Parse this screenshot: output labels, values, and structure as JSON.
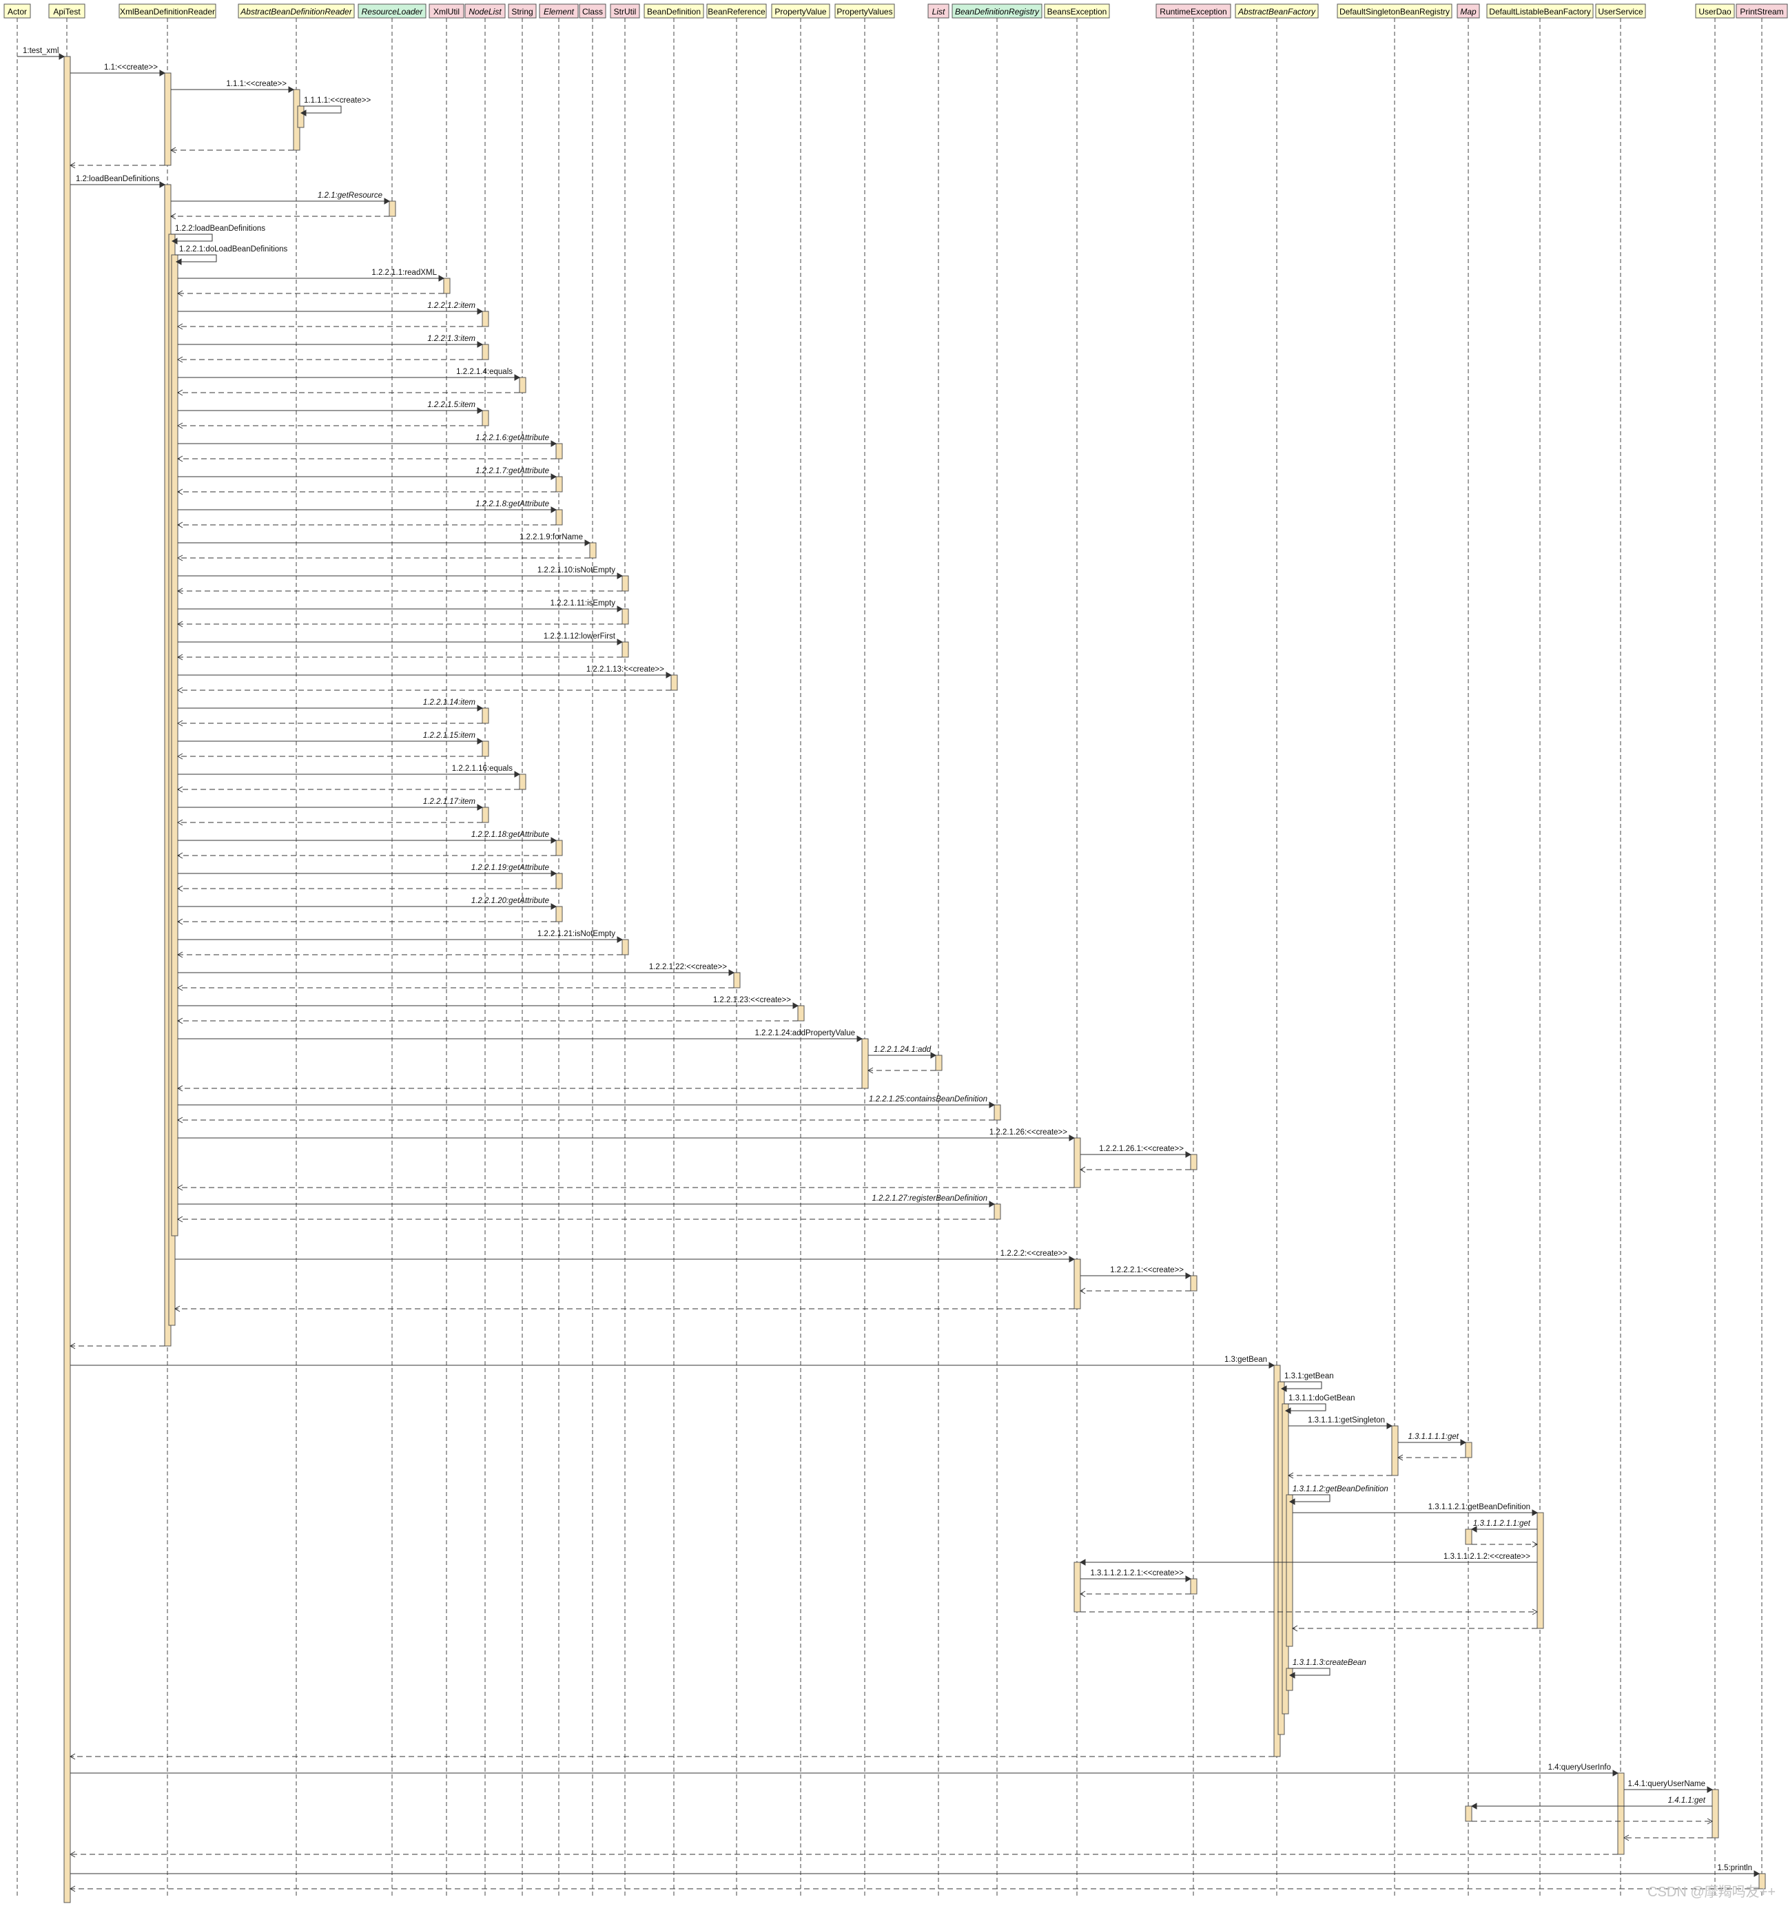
{
  "colors": {
    "yellow": "#ffffcc",
    "pink": "#f7d4d9",
    "green": "#ccf2d9",
    "activation": "#f5e0b4",
    "line": "#333333"
  },
  "participants": [
    {
      "id": "actor",
      "label": "Actor",
      "fill": "yellow",
      "italic": false
    },
    {
      "id": "apitest",
      "label": "ApiTest",
      "fill": "yellow",
      "italic": false
    },
    {
      "id": "xbdr",
      "label": "XmlBeanDefinitionReader",
      "fill": "yellow",
      "italic": false
    },
    {
      "id": "abdr",
      "label": "AbstractBeanDefinitionReader",
      "fill": "yellow",
      "italic": true
    },
    {
      "id": "rl",
      "label": "ResourceLoader",
      "fill": "green",
      "italic": true
    },
    {
      "id": "xu",
      "label": "XmlUtil",
      "fill": "pink",
      "italic": false
    },
    {
      "id": "nl",
      "label": "NodeList",
      "fill": "pink",
      "italic": true
    },
    {
      "id": "str",
      "label": "String",
      "fill": "pink",
      "italic": false
    },
    {
      "id": "el",
      "label": "Element",
      "fill": "pink",
      "italic": true
    },
    {
      "id": "cls",
      "label": "Class",
      "fill": "pink",
      "italic": false
    },
    {
      "id": "su",
      "label": "StrUtil",
      "fill": "pink",
      "italic": false
    },
    {
      "id": "bd",
      "label": "BeanDefinition",
      "fill": "yellow",
      "italic": false
    },
    {
      "id": "br",
      "label": "BeanReference",
      "fill": "yellow",
      "italic": false
    },
    {
      "id": "pv",
      "label": "PropertyValue",
      "fill": "yellow",
      "italic": false
    },
    {
      "id": "pvs",
      "label": "PropertyValues",
      "fill": "yellow",
      "italic": false
    },
    {
      "id": "list",
      "label": "List",
      "fill": "pink",
      "italic": true
    },
    {
      "id": "bdreg",
      "label": "BeanDefinitionRegistry",
      "fill": "green",
      "italic": true
    },
    {
      "id": "bex",
      "label": "BeansException",
      "fill": "yellow",
      "italic": false
    },
    {
      "id": "rex",
      "label": "RuntimeException",
      "fill": "pink",
      "italic": false
    },
    {
      "id": "abf",
      "label": "AbstractBeanFactory",
      "fill": "yellow",
      "italic": true
    },
    {
      "id": "dsbr",
      "label": "DefaultSingletonBeanRegistry",
      "fill": "yellow",
      "italic": false
    },
    {
      "id": "map",
      "label": "Map",
      "fill": "pink",
      "italic": true
    },
    {
      "id": "dlbf",
      "label": "DefaultListableBeanFactory",
      "fill": "yellow",
      "italic": false
    },
    {
      "id": "us",
      "label": "UserService",
      "fill": "yellow",
      "italic": false
    },
    {
      "id": "ud",
      "label": "UserDao",
      "fill": "yellow",
      "italic": false
    },
    {
      "id": "ps",
      "label": "PrintStream",
      "fill": "pink",
      "italic": false
    }
  ],
  "messages": [
    {
      "label": "1:test_xml",
      "italic": false
    },
    {
      "label": "1.1:<<create>>",
      "italic": false
    },
    {
      "label": "1.1.1:<<create>>",
      "italic": false
    },
    {
      "label": "1.1.1.1:<<create>>",
      "italic": false
    },
    {
      "label": "1.2:loadBeanDefinitions",
      "italic": false
    },
    {
      "label": "1.2.1:getResource",
      "italic": true
    },
    {
      "label": "1.2.2:loadBeanDefinitions",
      "italic": false
    },
    {
      "label": "1.2.2.1:doLoadBeanDefinitions",
      "italic": false
    },
    {
      "label": "1.2.2.1.1:readXML",
      "italic": false
    },
    {
      "label": "1.2.2.1.2:item",
      "italic": true
    },
    {
      "label": "1.2.2.1.3:item",
      "italic": true
    },
    {
      "label": "1.2.2.1.4:equals",
      "italic": false
    },
    {
      "label": "1.2.2.1.5:item",
      "italic": true
    },
    {
      "label": "1.2.2.1.6:getAttribute",
      "italic": true
    },
    {
      "label": "1.2.2.1.7:getAttribute",
      "italic": true
    },
    {
      "label": "1.2.2.1.8:getAttribute",
      "italic": true
    },
    {
      "label": "1.2.2.1.9:forName",
      "italic": false
    },
    {
      "label": "1.2.2.1.10:isNotEmpty",
      "italic": false
    },
    {
      "label": "1.2.2.1.11:isEmpty",
      "italic": false
    },
    {
      "label": "1.2.2.1.12:lowerFirst",
      "italic": false
    },
    {
      "label": "1.2.2.1.13:<<create>>",
      "italic": false
    },
    {
      "label": "1.2.2.1.14:item",
      "italic": true
    },
    {
      "label": "1.2.2.1.15:item",
      "italic": true
    },
    {
      "label": "1.2.2.1.16:equals",
      "italic": false
    },
    {
      "label": "1.2.2.1.17:item",
      "italic": true
    },
    {
      "label": "1.2.2.1.18:getAttribute",
      "italic": true
    },
    {
      "label": "1.2.2.1.19:getAttribute",
      "italic": true
    },
    {
      "label": "1.2.2.1.20:getAttribute",
      "italic": true
    },
    {
      "label": "1.2.2.1.21:isNotEmpty",
      "italic": false
    },
    {
      "label": "1.2.2.1.22:<<create>>",
      "italic": false
    },
    {
      "label": "1.2.2.1.23:<<create>>",
      "italic": false
    },
    {
      "label": "1.2.2.1.24:addPropertyValue",
      "italic": false
    },
    {
      "label": "1.2.2.1.24.1:add",
      "italic": true
    },
    {
      "label": "1.2.2.1.25:containsBeanDefinition",
      "italic": true
    },
    {
      "label": "1.2.2.1.26:<<create>>",
      "italic": false
    },
    {
      "label": "1.2.2.1.26.1:<<create>>",
      "italic": false
    },
    {
      "label": "1.2.2.1.27:registerBeanDefinition",
      "italic": true
    },
    {
      "label": "1.2.2.2:<<create>>",
      "italic": false
    },
    {
      "label": "1.2.2.2.1:<<create>>",
      "italic": false
    },
    {
      "label": "1.3:getBean",
      "italic": false
    },
    {
      "label": "1.3.1:getBean",
      "italic": false
    },
    {
      "label": "1.3.1.1:doGetBean",
      "italic": false
    },
    {
      "label": "1.3.1.1.1:getSingleton",
      "italic": false
    },
    {
      "label": "1.3.1.1.1.1:get",
      "italic": true
    },
    {
      "label": "1.3.1.1.2:getBeanDefinition",
      "italic": true
    },
    {
      "label": "1.3.1.1.2.1:getBeanDefinition",
      "italic": false
    },
    {
      "label": "1.3.1.1.2.1.1:get",
      "italic": true
    },
    {
      "label": "1.3.1.1.2.1.2:<<create>>",
      "italic": false
    },
    {
      "label": "1.3.1.1.2.1.2.1:<<create>>",
      "italic": false
    },
    {
      "label": "1.3.1.1.3:createBean",
      "italic": true
    },
    {
      "label": "1.4:queryUserInfo",
      "italic": false
    },
    {
      "label": "1.4.1:queryUserName",
      "italic": false
    },
    {
      "label": "1.4.1.1:get",
      "italic": true
    },
    {
      "label": "1.5:println",
      "italic": false
    }
  ],
  "watermark": "CSDN @摩羯吗友++"
}
